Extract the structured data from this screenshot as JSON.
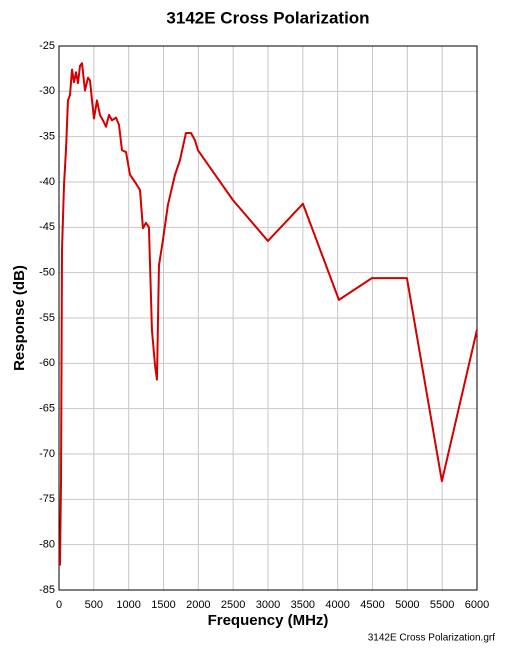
{
  "chart_data": {
    "type": "line",
    "title": "3142E Cross Polarization",
    "x_label": "Frequency  (MHz)",
    "y_label": "Response  (dB)",
    "footnote": "3142E Cross Polarization.grf",
    "xlim": [
      0,
      6000
    ],
    "ylim": [
      -85,
      -25
    ],
    "xticks": [
      0,
      500,
      1000,
      1500,
      2000,
      2500,
      3000,
      3500,
      4000,
      4500,
      5000,
      5500,
      6000
    ],
    "yticks": [
      -25,
      -30,
      -35,
      -40,
      -45,
      -50,
      -55,
      -60,
      -65,
      -70,
      -75,
      -80,
      -85
    ],
    "grid": true,
    "series": [
      {
        "color": "#d40000",
        "x": [
          14,
          29,
          43,
          72,
          100,
          129,
          158,
          187,
          215,
          244,
          273,
          301,
          330,
          373,
          416,
          445,
          474,
          502,
          545,
          588,
          631,
          675,
          718,
          761,
          818,
          861,
          904,
          962,
          1019,
          1091,
          1163,
          1205,
          1248,
          1291,
          1334,
          1378,
          1406,
          1435,
          1492,
          1564,
          1665,
          1736,
          1822,
          1894,
          1952,
          1995,
          2497,
          2999,
          3501,
          4018,
          4491,
          4994,
          5496,
          6000
        ],
        "values": [
          -82.3,
          -72.9,
          -47.5,
          -40.3,
          -36.5,
          -31,
          -30.4,
          -27.6,
          -29,
          -27.9,
          -29.1,
          -27.2,
          -26.9,
          -29.9,
          -28.5,
          -28.8,
          -31,
          -33,
          -31,
          -32.6,
          -33.2,
          -33.9,
          -32.6,
          -33.2,
          -32.9,
          -33.7,
          -36.5,
          -36.7,
          -39.2,
          -40,
          -40.9,
          -45.1,
          -44.5,
          -45,
          -56.3,
          -60.2,
          -61.8,
          -49.2,
          -46.4,
          -42.5,
          -39.2,
          -37.6,
          -34.6,
          -34.6,
          -35.4,
          -36.5,
          -42,
          -46.5,
          -42.4,
          -53,
          -50.6,
          -50.6,
          -73,
          -56.3
        ]
      }
    ]
  }
}
